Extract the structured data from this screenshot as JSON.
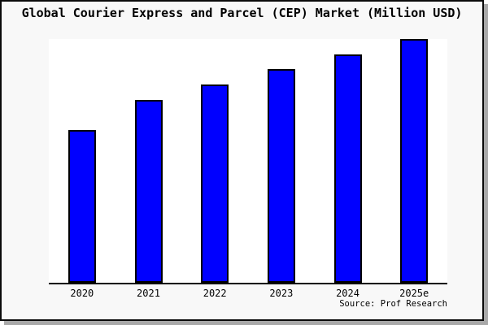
{
  "title": "Global Courier Express and Parcel (CEP) Market (Million USD)",
  "source": "Source: Prof Research",
  "colors": {
    "canvas_background": "#f8f8f8",
    "plot_background": "#ffffff",
    "bar_fill": "#0000ff",
    "bar_border": "#000000",
    "frame_border": "#0a0a0a",
    "frame_shadow": "#a9a9a9",
    "axis_line": "#000000",
    "text": "#000000"
  },
  "chart_data": {
    "type": "bar",
    "title": "Global Courier Express and Parcel (CEP) Market (Million USD)",
    "categories": [
      "2020",
      "2021",
      "2022",
      "2023",
      "2024",
      "2025e"
    ],
    "values": [
      62.7,
      75.0,
      81.2,
      87.7,
      93.7,
      100.0
    ],
    "values_note": "No y-axis ticks or data labels shown in chart; values estimated as percent of tallest bar (2025e = 100)",
    "xlabel": "",
    "ylabel": "",
    "ylim": [
      0,
      100
    ],
    "grid": false,
    "legend": false,
    "source_annotation": "Source: Prof Research",
    "bar_color": "#0000ff",
    "bar_border_color": "#000000"
  }
}
